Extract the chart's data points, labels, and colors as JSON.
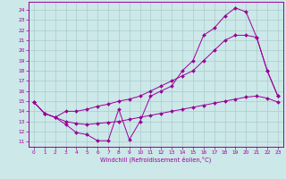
{
  "xlabel": "Windchill (Refroidissement éolien,°C)",
  "bg_color": "#cce8e8",
  "line_color": "#990099",
  "grid_color": "#aacccc",
  "xlim": [
    -0.5,
    23.5
  ],
  "ylim": [
    10.5,
    24.8
  ],
  "xticks": [
    0,
    1,
    2,
    3,
    4,
    5,
    6,
    7,
    8,
    9,
    10,
    11,
    12,
    13,
    14,
    15,
    16,
    17,
    18,
    19,
    20,
    21,
    22,
    23
  ],
  "yticks": [
    11,
    12,
    13,
    14,
    15,
    16,
    17,
    18,
    19,
    20,
    21,
    22,
    23,
    24
  ],
  "line1_x": [
    0,
    1,
    2,
    3,
    4,
    5,
    6,
    7,
    8,
    9,
    10,
    11,
    12,
    13,
    14,
    15,
    16,
    17,
    18,
    19,
    20,
    21,
    22,
    23
  ],
  "line1_y": [
    14.9,
    13.8,
    13.4,
    12.7,
    11.9,
    11.7,
    11.1,
    11.1,
    14.2,
    11.2,
    13.0,
    15.5,
    16.0,
    16.5,
    18.0,
    19.0,
    21.5,
    22.2,
    23.4,
    24.2,
    23.8,
    21.3,
    18.0,
    15.5
  ],
  "line2_x": [
    0,
    1,
    2,
    3,
    4,
    5,
    6,
    7,
    8,
    9,
    10,
    11,
    12,
    13,
    14,
    15,
    16,
    17,
    18,
    19,
    20,
    21,
    22,
    23
  ],
  "line2_y": [
    14.9,
    13.8,
    13.4,
    14.0,
    14.0,
    14.2,
    14.5,
    14.7,
    15.0,
    15.2,
    15.5,
    16.0,
    16.5,
    17.0,
    17.5,
    18.0,
    19.0,
    20.0,
    21.0,
    21.5,
    21.5,
    21.3,
    18.0,
    15.5
  ],
  "line3_x": [
    0,
    1,
    2,
    3,
    4,
    5,
    6,
    7,
    8,
    9,
    10,
    11,
    12,
    13,
    14,
    15,
    16,
    17,
    18,
    19,
    20,
    21,
    22,
    23
  ],
  "line3_y": [
    14.9,
    13.8,
    13.4,
    13.0,
    12.8,
    12.7,
    12.8,
    12.9,
    13.0,
    13.2,
    13.4,
    13.6,
    13.8,
    14.0,
    14.2,
    14.4,
    14.6,
    14.8,
    15.0,
    15.2,
    15.4,
    15.5,
    15.3,
    14.9
  ]
}
